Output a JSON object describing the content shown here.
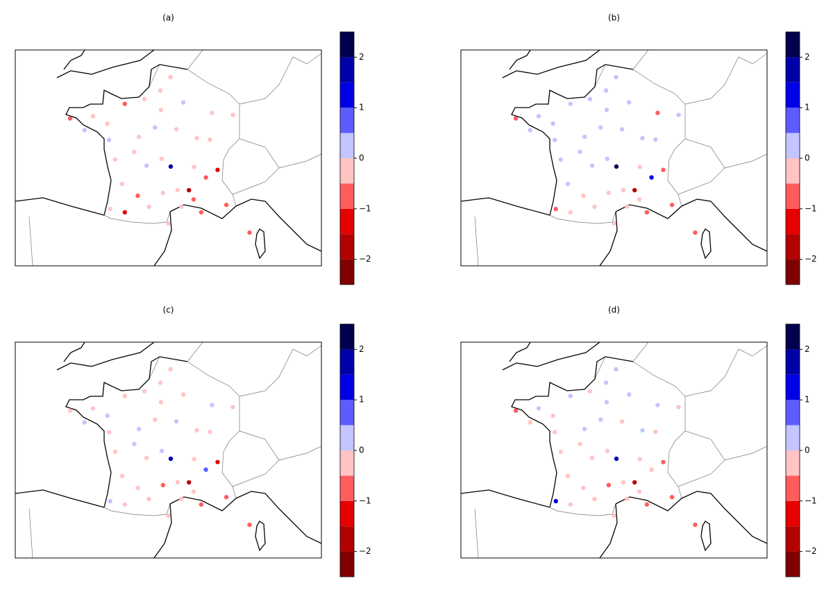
{
  "chart_data": [
    {
      "type": "scatter",
      "title": "(a)",
      "xlim": [
        -8.6,
        14.4
      ],
      "ylim": [
        40.4,
        52.1
      ],
      "x": [
        2.35,
        -1.68,
        -4.48,
        -0.57,
        1.44,
        5.37,
        4.84,
        7.75,
        3.06,
        -1.55,
        0.69,
        3.08,
        5.04,
        6.18,
        4.03,
        1.1,
        -0.37,
        0.34,
        1.26,
        3.88,
        7.26,
        5.72,
        2.9,
        -0.37,
        -1.47,
        6.02,
        2.3,
        1.9,
        2.4,
        3.6,
        4.45,
        -1.1,
        0.6,
        2.5,
        -3.4,
        -2.76,
        4.8,
        9.0,
        6.6,
        3.5
      ],
      "y": [
        48.85,
        48.11,
        48.39,
        44.84,
        43.6,
        43.3,
        45.76,
        48.58,
        50.63,
        47.22,
        47.39,
        45.78,
        47.32,
        48.69,
        49.26,
        49.44,
        49.18,
        46.58,
        45.83,
        43.61,
        43.7,
        45.19,
        42.7,
        43.3,
        43.48,
        47.24,
        49.9,
        47.9,
        46.2,
        44.5,
        44.5,
        46.16,
        44.2,
        44.35,
        47.75,
        48.51,
        44.0,
        42.2,
        45.6,
        47.8
      ],
      "values": [
        -0.3,
        -0.3,
        -0.7,
        -0.3,
        -0.3,
        -0.8,
        -0.3,
        -0.3,
        -0.3,
        0.3,
        -0.3,
        1.8,
        -0.3,
        -0.3,
        0.3,
        -0.3,
        -0.7,
        -0.3,
        0.3,
        -0.3,
        -0.8,
        -0.7,
        -0.3,
        -1.2,
        -0.3,
        -0.3,
        -0.3,
        0.3,
        -0.3,
        -0.3,
        -1.8,
        -0.3,
        -0.7,
        -0.3,
        0.3,
        -0.3,
        -0.7,
        -0.8,
        -1.3,
        -0.3
      ],
      "levels": [
        -2.5,
        -2,
        -1.5,
        -1,
        -0.5,
        0,
        0.5,
        1,
        1.5,
        2,
        2.5
      ],
      "colors": [
        "#7f0000",
        "#b30000",
        "#e60000",
        "#ff5c5c",
        "#ffc4c4",
        "#c4c4ff",
        "#5c5cff",
        "#0000e6",
        "#0000a8",
        "#00004f"
      ],
      "cticks": [
        {
          "value": -2,
          "label": "−2"
        },
        {
          "value": -1,
          "label": "−1"
        },
        0,
        1,
        2
      ]
    },
    {
      "type": "scatter",
      "title": "(b)",
      "xlim": [
        -8.6,
        14.4
      ],
      "ylim": [
        40.4,
        52.1
      ],
      "x": [
        2.35,
        -1.68,
        -4.48,
        -0.57,
        1.44,
        5.37,
        4.84,
        7.75,
        3.06,
        -1.55,
        0.69,
        3.08,
        5.04,
        6.18,
        4.03,
        1.1,
        -0.37,
        0.34,
        1.26,
        3.88,
        7.26,
        5.72,
        2.9,
        -0.37,
        -1.47,
        6.02,
        2.3,
        1.9,
        2.4,
        3.6,
        4.45,
        -1.1,
        0.6,
        2.5,
        -3.4,
        -2.76,
        4.8,
        9.0,
        6.6,
        3.5
      ],
      "y": [
        48.85,
        48.11,
        48.39,
        44.84,
        43.6,
        43.3,
        45.76,
        48.58,
        50.63,
        47.22,
        47.39,
        45.78,
        47.32,
        48.69,
        49.26,
        49.44,
        49.18,
        46.58,
        45.83,
        43.61,
        43.7,
        45.19,
        42.7,
        43.3,
        43.48,
        47.24,
        49.9,
        47.9,
        46.2,
        44.5,
        44.5,
        46.16,
        44.2,
        44.35,
        47.75,
        48.51,
        44.0,
        42.2,
        45.6,
        47.8
      ],
      "values": [
        0.3,
        0.3,
        -0.7,
        0.3,
        -0.3,
        -0.7,
        -0.3,
        0.3,
        0.3,
        0.3,
        0.3,
        2.3,
        0.3,
        -0.7,
        0.3,
        0.3,
        0.3,
        0.3,
        0.3,
        -0.3,
        -0.7,
        1.3,
        -0.3,
        -0.3,
        -0.7,
        0.3,
        0.3,
        0.3,
        0.3,
        -0.3,
        -1.8,
        0.3,
        -0.3,
        -0.3,
        0.3,
        0.3,
        -0.3,
        -0.7,
        -0.7,
        0.3
      ],
      "levels": [
        -2.5,
        -2,
        -1.5,
        -1,
        -0.5,
        0,
        0.5,
        1,
        1.5,
        2,
        2.5
      ],
      "colors": [
        "#7f0000",
        "#b30000",
        "#e60000",
        "#ff5c5c",
        "#ffc4c4",
        "#c4c4ff",
        "#5c5cff",
        "#0000e6",
        "#0000a8",
        "#00004f"
      ],
      "cticks": [
        {
          "value": -2,
          "label": "−2"
        },
        {
          "value": -1,
          "label": "−1"
        },
        0,
        1,
        2
      ]
    },
    {
      "type": "scatter",
      "title": "(c)",
      "xlim": [
        -8.6,
        14.4
      ],
      "ylim": [
        40.4,
        52.1
      ],
      "x": [
        2.35,
        -1.68,
        -4.48,
        -0.57,
        1.44,
        5.37,
        4.84,
        7.75,
        3.06,
        -1.55,
        0.69,
        3.08,
        5.04,
        6.18,
        4.03,
        1.1,
        -0.37,
        0.34,
        1.26,
        3.88,
        7.26,
        5.72,
        2.9,
        -0.37,
        -1.47,
        6.02,
        2.3,
        1.9,
        2.4,
        3.6,
        4.45,
        -1.1,
        0.6,
        2.5,
        -3.4,
        -2.76,
        4.8,
        9.0,
        6.6,
        3.5
      ],
      "y": [
        48.85,
        48.11,
        48.39,
        44.84,
        43.6,
        43.3,
        45.76,
        48.58,
        50.63,
        47.22,
        47.39,
        45.78,
        47.32,
        48.69,
        49.26,
        49.44,
        49.18,
        46.58,
        45.83,
        43.61,
        43.7,
        45.19,
        42.7,
        43.3,
        43.48,
        47.24,
        49.9,
        47.9,
        46.2,
        44.5,
        44.5,
        46.16,
        44.2,
        44.35,
        47.75,
        48.51,
        44.0,
        42.2,
        45.6,
        47.8
      ],
      "values": [
        -0.3,
        0.3,
        -0.3,
        -0.3,
        -0.3,
        -0.7,
        -0.3,
        -0.3,
        -0.3,
        -0.3,
        0.3,
        1.8,
        -0.3,
        0.3,
        -0.3,
        -0.3,
        -0.3,
        0.3,
        -0.3,
        -0.3,
        -0.8,
        0.8,
        -0.3,
        -0.3,
        0.3,
        -0.3,
        -0.3,
        -0.3,
        0.3,
        -0.3,
        -1.8,
        -0.3,
        -0.3,
        -0.7,
        0.3,
        -0.3,
        -0.3,
        -0.7,
        -1.3,
        0.3
      ],
      "levels": [
        -2.5,
        -2,
        -1.5,
        -1,
        -0.5,
        0,
        0.5,
        1,
        1.5,
        2,
        2.5
      ],
      "colors": [
        "#7f0000",
        "#b30000",
        "#e60000",
        "#ff5c5c",
        "#ffc4c4",
        "#c4c4ff",
        "#5c5cff",
        "#0000e6",
        "#0000a8",
        "#00004f"
      ],
      "cticks": [
        {
          "value": -2,
          "label": "−2"
        },
        {
          "value": -1,
          "label": "−1"
        },
        0,
        1,
        2
      ]
    },
    {
      "type": "scatter",
      "title": "(d)",
      "xlim": [
        -8.6,
        14.4
      ],
      "ylim": [
        40.4,
        52.1
      ],
      "x": [
        2.35,
        -1.68,
        -4.48,
        -0.57,
        1.44,
        5.37,
        4.84,
        7.75,
        3.06,
        -1.55,
        0.69,
        3.08,
        5.04,
        6.18,
        4.03,
        1.1,
        -0.37,
        0.34,
        1.26,
        3.88,
        7.26,
        5.72,
        2.9,
        -0.37,
        -1.47,
        6.02,
        2.3,
        1.9,
        2.4,
        3.6,
        4.45,
        -1.1,
        0.6,
        2.5,
        -3.4,
        -2.76,
        4.8,
        9.0,
        6.6,
        3.5
      ],
      "y": [
        48.85,
        48.11,
        48.39,
        44.84,
        43.6,
        43.3,
        45.76,
        48.58,
        50.63,
        47.22,
        47.39,
        45.78,
        47.32,
        48.69,
        49.26,
        49.44,
        49.18,
        46.58,
        45.83,
        43.61,
        43.7,
        45.19,
        42.7,
        43.3,
        43.48,
        47.24,
        49.9,
        47.9,
        46.2,
        44.5,
        44.5,
        46.16,
        44.2,
        44.35,
        47.75,
        48.51,
        44.0,
        42.2,
        45.6,
        47.8
      ],
      "values": [
        0.3,
        -0.3,
        -0.7,
        -0.3,
        -0.3,
        -0.7,
        -0.3,
        -0.3,
        0.3,
        -0.3,
        0.3,
        1.8,
        0.3,
        0.3,
        0.3,
        -0.3,
        0.3,
        -0.3,
        -0.3,
        -0.3,
        -0.7,
        -0.3,
        -0.3,
        -0.3,
        1.3,
        -0.3,
        0.3,
        0.3,
        -0.3,
        -0.3,
        -1.8,
        -0.3,
        -0.3,
        -0.7,
        -0.3,
        0.3,
        -0.3,
        -0.7,
        -0.7,
        -0.3
      ],
      "levels": [
        -2.5,
        -2,
        -1.5,
        -1,
        -0.5,
        0,
        0.5,
        1,
        1.5,
        2,
        2.5
      ],
      "colors": [
        "#7f0000",
        "#b30000",
        "#e60000",
        "#ff5c5c",
        "#ffc4c4",
        "#c4c4ff",
        "#5c5cff",
        "#0000e6",
        "#0000a8",
        "#00004f"
      ],
      "cticks": [
        {
          "value": -2,
          "label": "−2"
        },
        {
          "value": -1,
          "label": "−1"
        },
        0,
        1,
        2
      ]
    }
  ]
}
